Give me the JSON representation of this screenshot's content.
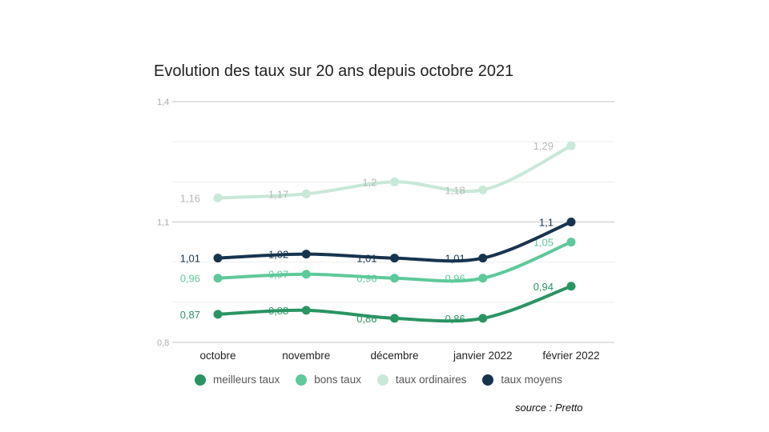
{
  "chart_data": {
    "type": "line",
    "title": "Evolution des taux sur 20 ans depuis octobre 2021",
    "categories": [
      "octobre",
      "novembre",
      "décembre",
      "janvier 2022",
      "février 2022"
    ],
    "ylim": [
      0.8,
      1.4
    ],
    "yticks": [
      "0,8",
      "1,1",
      "1,4"
    ],
    "grid": true,
    "legend": "bottom",
    "series": [
      {
        "name": "meilleurs taux",
        "color": "#2a9463",
        "values": [
          0.87,
          0.88,
          0.86,
          0.86,
          0.94
        ],
        "labels": [
          "0,87",
          "0,88",
          "0,86",
          "0,86",
          "0,94"
        ]
      },
      {
        "name": "bons taux",
        "color": "#5ec99a",
        "values": [
          0.96,
          0.97,
          0.96,
          0.96,
          1.05
        ],
        "labels": [
          "0,96",
          "0,97",
          "0,96",
          "0,96",
          "1,05"
        ]
      },
      {
        "name": "taux ordinaires",
        "color": "#c8e8d8",
        "values": [
          1.16,
          1.17,
          1.2,
          1.18,
          1.29
        ],
        "labels": [
          "1,16",
          "1,17",
          "1,2",
          "1,18",
          "1,29"
        ]
      },
      {
        "name": "taux moyens",
        "color": "#17344f",
        "values": [
          1.01,
          1.02,
          1.01,
          1.01,
          1.1
        ],
        "labels": [
          "1,01",
          "1,02",
          "1,01",
          "1,01",
          "1,1"
        ]
      }
    ]
  },
  "source": "source : Pretto"
}
